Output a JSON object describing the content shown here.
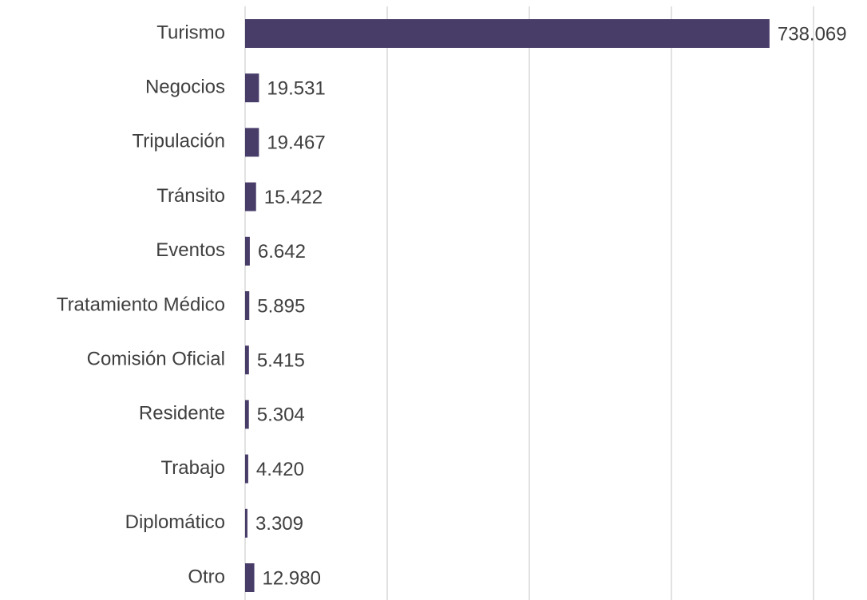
{
  "chart_data": {
    "type": "bar",
    "orientation": "horizontal",
    "categories": [
      "Turismo",
      "Negocios",
      "Tripulación",
      "Tránsito",
      "Eventos",
      "Tratamiento Médico",
      "Comisión Oficial",
      "Residente",
      "Trabajo",
      "Diplomático",
      "Otro"
    ],
    "values": [
      738069,
      19531,
      19467,
      15422,
      6642,
      5895,
      5415,
      5304,
      4420,
      3309,
      12980
    ],
    "value_labels": [
      "738.069",
      "19.531",
      "19.467",
      "15.422",
      "6.642",
      "5.895",
      "5.415",
      "5.304",
      "4.420",
      "3.309",
      "12.980"
    ],
    "color": "#483c69",
    "xlim": [
      0,
      800000
    ],
    "xticks": [
      0,
      200000,
      400000,
      600000,
      800000
    ],
    "grid": true
  }
}
